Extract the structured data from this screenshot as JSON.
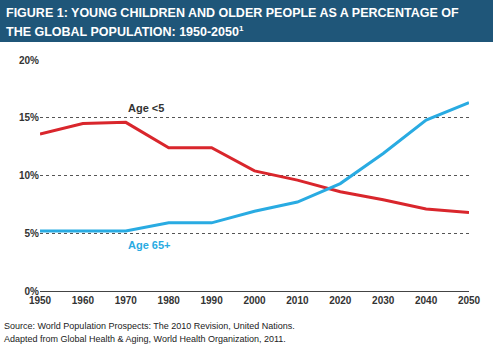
{
  "chart_data": {
    "type": "line",
    "title": "FIGURE 1: YOUNG CHILDREN AND OLDER PEOPLE AS A PERCENTAGE OF THE GLOBAL POPULATION: 1950-2050",
    "title_footnote": "1",
    "source": [
      "Source: World Population Prospects: The 2010 Revision, United Nations.",
      "Adapted from Global Health & Aging, World Health Organization, 2011."
    ],
    "x": [
      1950,
      1960,
      1970,
      1980,
      1990,
      2000,
      2010,
      2020,
      2030,
      2040,
      2050
    ],
    "series": [
      {
        "name": "Age <5",
        "color": "#d9262c",
        "values": [
          13.6,
          14.5,
          14.6,
          12.4,
          12.4,
          10.4,
          9.6,
          8.6,
          7.9,
          7.1,
          6.8
        ]
      },
      {
        "name": "Age 65+",
        "color": "#29abe2",
        "values": [
          5.2,
          5.2,
          5.2,
          5.9,
          5.9,
          6.9,
          7.7,
          9.3,
          11.9,
          14.8,
          16.3
        ]
      }
    ],
    "xlim": [
      1950,
      2050
    ],
    "xticks": [
      1950,
      1960,
      1970,
      1980,
      1990,
      2000,
      2010,
      2020,
      2030,
      2040,
      2050
    ],
    "ylim": [
      0,
      20
    ],
    "yticks": [
      {
        "value": 0,
        "label": "0%"
      },
      {
        "value": 5,
        "label": "5%"
      },
      {
        "value": 10,
        "label": "10%"
      },
      {
        "value": 15,
        "label": "15%"
      },
      {
        "value": 20,
        "label": "20%"
      }
    ],
    "grid": true
  }
}
